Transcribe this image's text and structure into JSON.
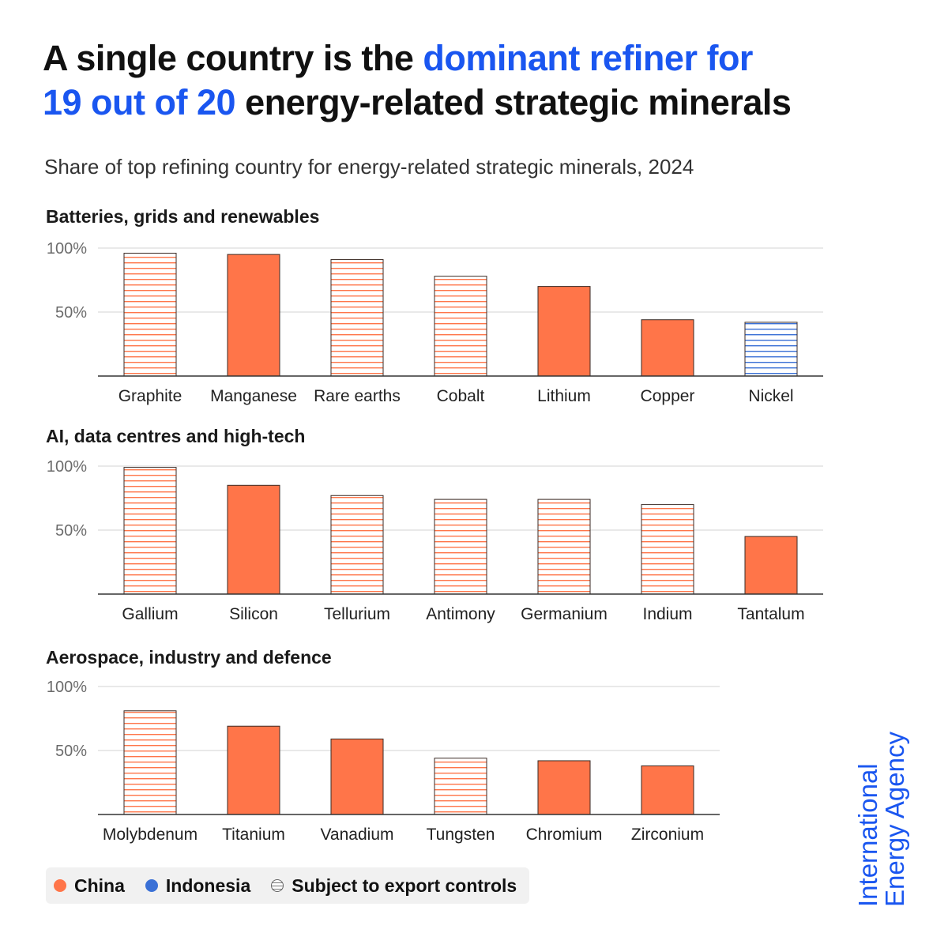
{
  "title": {
    "part1": "A single country is the ",
    "part2": "dominant refiner for",
    "part3": "19 out of 20",
    "part4": " energy-related strategic minerals"
  },
  "subtitle": "Share of top refining country for energy-related strategic minerals, 2024",
  "colors": {
    "china": "#ff7549",
    "indonesia": "#3a70d6",
    "highlight": "#1a56f0",
    "gridline": "#dcdcdc",
    "axis": "#333333"
  },
  "chart_data": [
    {
      "type": "bar",
      "title": "Batteries, grids and renewables",
      "ylim": [
        0,
        100
      ],
      "yticks": [
        "100%",
        "50%"
      ],
      "categories": [
        "Graphite",
        "Manganese",
        "Rare earths",
        "Cobalt",
        "Lithium",
        "Copper",
        "Nickel"
      ],
      "values": [
        96,
        95,
        91,
        78,
        70,
        44,
        42
      ],
      "country": [
        "China",
        "China",
        "China",
        "China",
        "China",
        "China",
        "Indonesia"
      ],
      "export_controls": [
        true,
        false,
        true,
        true,
        false,
        false,
        true
      ]
    },
    {
      "type": "bar",
      "title": "AI, data centres and high-tech",
      "ylim": [
        0,
        100
      ],
      "yticks": [
        "100%",
        "50%"
      ],
      "categories": [
        "Gallium",
        "Silicon",
        "Tellurium",
        "Antimony",
        "Germanium",
        "Indium",
        "Tantalum"
      ],
      "values": [
        99,
        85,
        77,
        74,
        74,
        70,
        45
      ],
      "country": [
        "China",
        "China",
        "China",
        "China",
        "China",
        "China",
        "China"
      ],
      "export_controls": [
        true,
        false,
        true,
        true,
        true,
        true,
        false
      ]
    },
    {
      "type": "bar",
      "title": "Aerospace, industry and defence",
      "ylim": [
        0,
        100
      ],
      "yticks": [
        "100%",
        "50%"
      ],
      "categories": [
        "Molybdenum",
        "Titanium",
        "Vanadium",
        "Tungsten",
        "Chromium",
        "Zirconium"
      ],
      "values": [
        81,
        69,
        59,
        44,
        42,
        38
      ],
      "country": [
        "China",
        "China",
        "China",
        "China",
        "China",
        "China"
      ],
      "export_controls": [
        true,
        false,
        false,
        true,
        false,
        false
      ]
    }
  ],
  "legend": {
    "china": "China",
    "indonesia": "Indonesia",
    "export_controls": "Subject to export controls"
  },
  "brand": {
    "line1": "International",
    "line2": "Energy Agency"
  }
}
